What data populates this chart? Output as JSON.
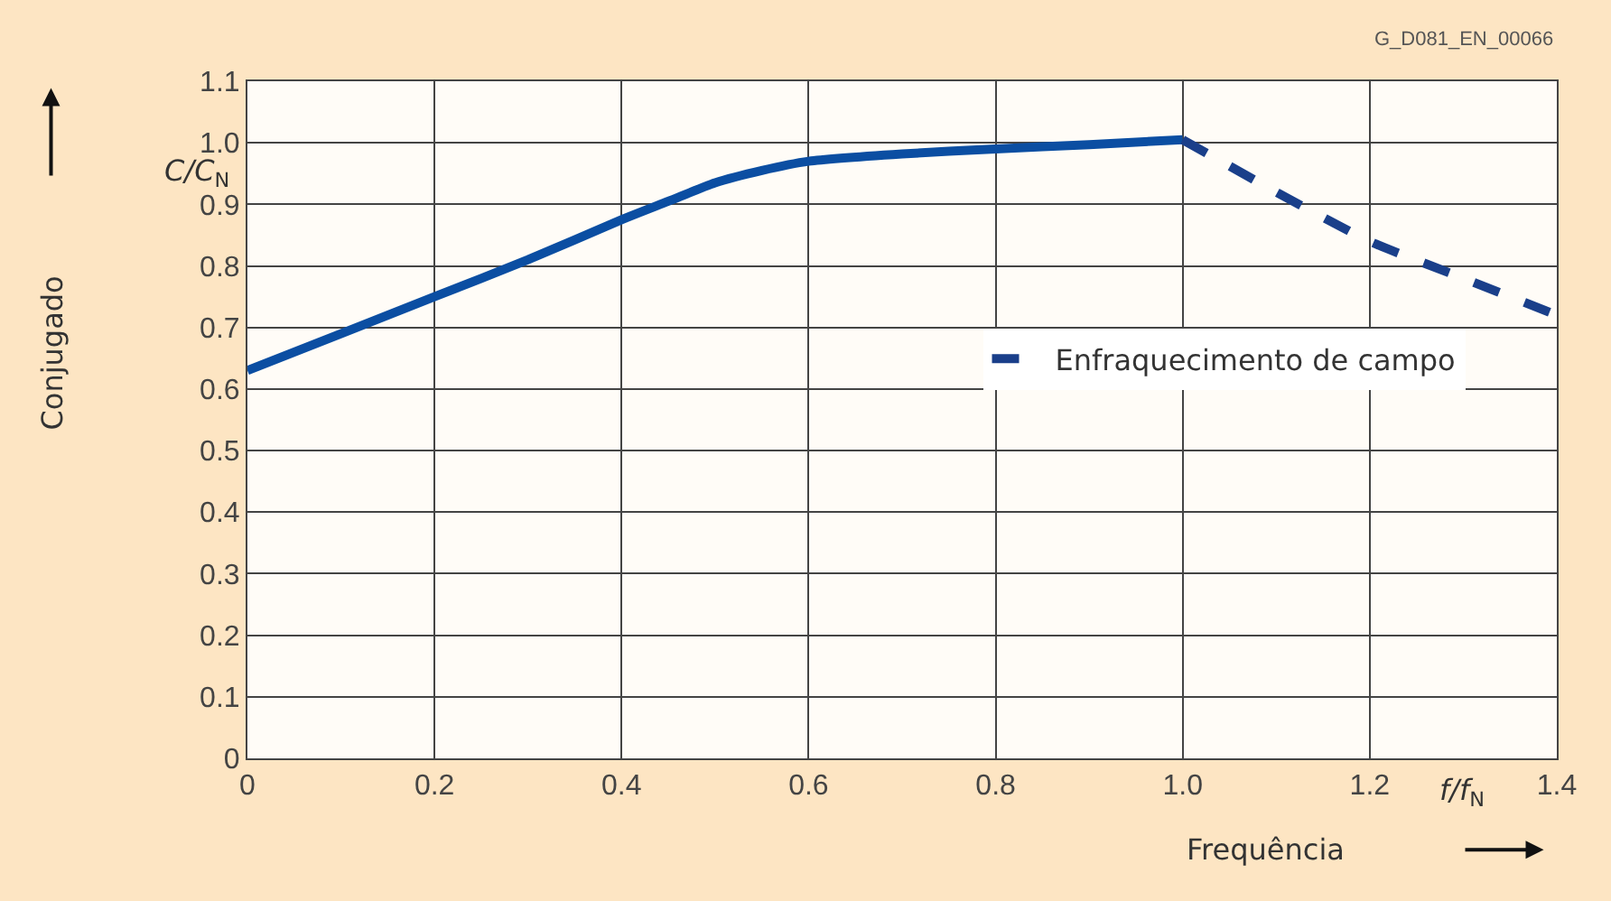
{
  "chart_data": {
    "type": "line",
    "xlabel": "Frequência",
    "ylabel": "Conjugado",
    "annotations": [
      "G_D081_EN_00066",
      "C/C$_{N}$",
      "f/f$_{N}$"
    ],
    "xlim": [
      0,
      1.4
    ],
    "xticks": [
      0,
      0.2,
      0.4,
      0.6,
      0.8,
      {
        "value": 1,
        "label": "1.0"
      },
      1.2,
      1.4
    ],
    "ylim": [
      0,
      1.1
    ],
    "yticks": [
      0,
      0.1,
      0.2,
      0.3,
      0.4,
      0.5,
      0.6,
      0.7,
      0.8,
      0.9,
      {
        "value": 1,
        "label": "1.0"
      },
      1.1
    ],
    "grid": true,
    "legend": "center right",
    "marker": "none",
    "series": [
      {
        "color": "#0b4ea2",
        "line_style": "solid",
        "x": [
          0,
          0.1,
          0.2,
          0.3,
          0.4,
          0.45,
          0.5,
          0.55,
          0.6,
          0.7,
          0.8,
          0.9,
          1.0
        ],
        "values": [
          0.63,
          0.69,
          0.75,
          0.81,
          0.875,
          0.905,
          0.935,
          0.955,
          0.97,
          0.982,
          0.99,
          0.997,
          1.005
        ]
      },
      {
        "name": "Enfraquecimento de campo",
        "color": "#1a3f8a",
        "line_style": "dashed",
        "x": [
          1.0,
          1.1,
          1.2,
          1.3,
          1.4
        ],
        "values": [
          1.005,
          0.92,
          0.84,
          0.78,
          0.72
        ]
      }
    ]
  }
}
